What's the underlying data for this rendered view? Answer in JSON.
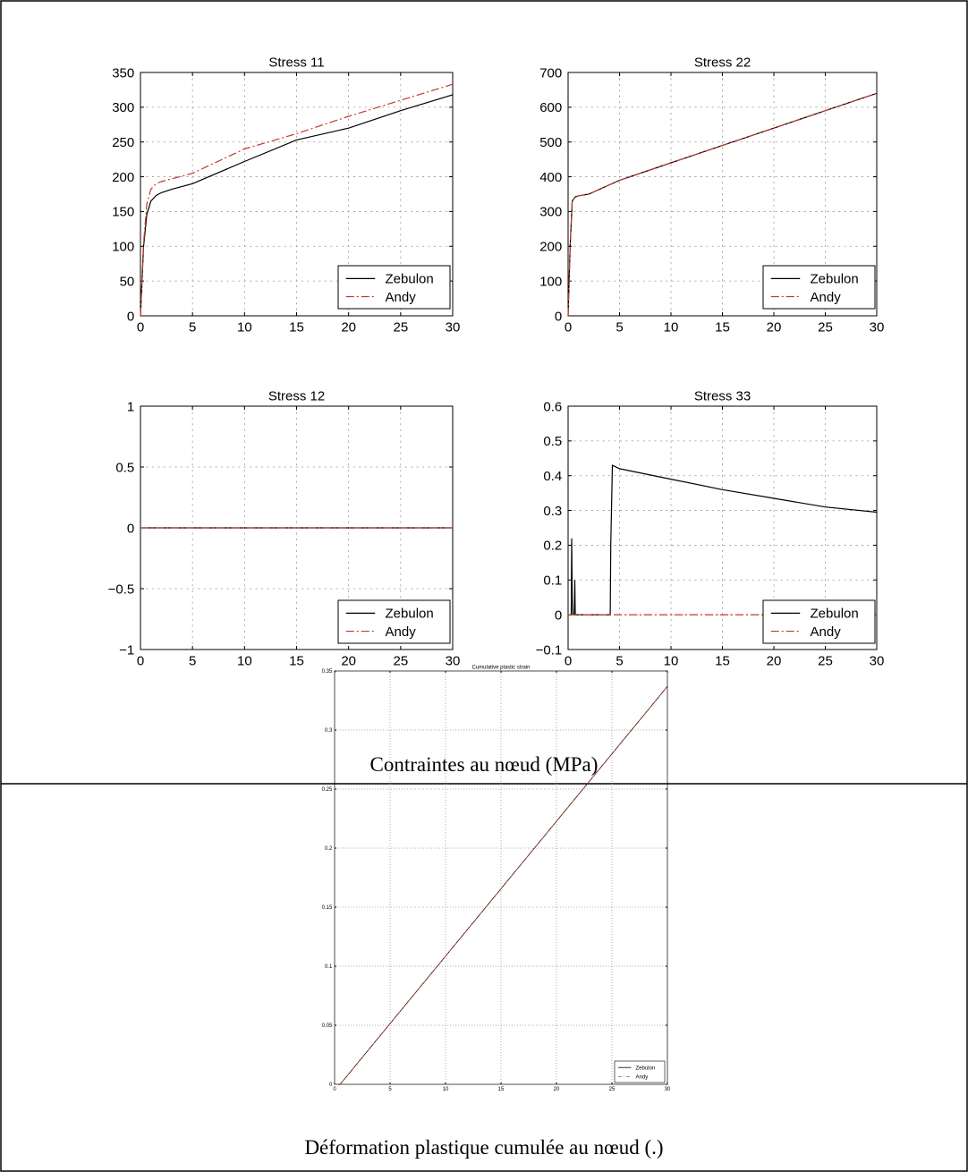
{
  "captions": {
    "stress": "Contraintes au nœud (MPa)",
    "strain": "Déformation plastique cumulée au nœud (.)"
  },
  "colors": {
    "zebulon": "#000000",
    "andy": "#c0392b",
    "grid": "#9a9a9a"
  },
  "chart_data": [
    {
      "type": "line",
      "title": "Stress 11",
      "xlim": [
        0,
        30
      ],
      "ylim": [
        0,
        350
      ],
      "xticks": [
        "0",
        "5",
        "10",
        "15",
        "20",
        "25",
        "30"
      ],
      "yticks": [
        "0",
        "50",
        "100",
        "150",
        "200",
        "250",
        "300",
        "350"
      ],
      "grid": true,
      "legend_position": "bottom-right",
      "series": [
        {
          "name": "Zebulon",
          "style": "solid",
          "x": [
            0,
            0.3,
            0.6,
            1.0,
            1.5,
            2,
            3,
            5,
            10,
            15,
            20,
            25,
            30
          ],
          "y": [
            0,
            100,
            145,
            165,
            173,
            177,
            182,
            190,
            222,
            253,
            270,
            295,
            318
          ]
        },
        {
          "name": "Andy",
          "style": "dashdot",
          "x": [
            0,
            0.3,
            0.6,
            1.0,
            1.5,
            2,
            3,
            5,
            10,
            15,
            20,
            25,
            30
          ],
          "y": [
            0,
            105,
            160,
            182,
            190,
            193,
            197,
            205,
            240,
            262,
            287,
            310,
            333
          ]
        }
      ]
    },
    {
      "type": "line",
      "title": "Stress 22",
      "xlim": [
        0,
        30
      ],
      "ylim": [
        0,
        700
      ],
      "xticks": [
        "0",
        "5",
        "10",
        "15",
        "20",
        "25",
        "30"
      ],
      "yticks": [
        "0",
        "100",
        "200",
        "300",
        "400",
        "500",
        "600",
        "700"
      ],
      "grid": true,
      "legend_position": "bottom-right",
      "series": [
        {
          "name": "Zebulon",
          "style": "solid",
          "x": [
            0,
            0.2,
            0.4,
            0.7,
            1,
            2,
            5,
            10,
            15,
            20,
            25,
            30
          ],
          "y": [
            0,
            200,
            330,
            342,
            345,
            350,
            390,
            440,
            490,
            540,
            590,
            640
          ]
        },
        {
          "name": "Andy",
          "style": "dashdot",
          "x": [
            0,
            0.2,
            0.4,
            0.7,
            1,
            2,
            5,
            10,
            15,
            20,
            25,
            30
          ],
          "y": [
            0,
            200,
            330,
            342,
            345,
            350,
            390,
            440,
            490,
            540,
            590,
            640
          ]
        }
      ]
    },
    {
      "type": "line",
      "title": "Stress 12",
      "xlim": [
        0,
        30
      ],
      "ylim": [
        -1,
        1
      ],
      "xticks": [
        "0",
        "5",
        "10",
        "15",
        "20",
        "25",
        "30"
      ],
      "yticks": [
        "−1",
        "−0.5",
        "0",
        "0.5",
        "1"
      ],
      "grid": true,
      "legend_position": "bottom-right",
      "series": [
        {
          "name": "Zebulon",
          "style": "solid",
          "x": [
            0,
            30
          ],
          "y": [
            0,
            0
          ]
        },
        {
          "name": "Andy",
          "style": "dashdot",
          "x": [
            0,
            30
          ],
          "y": [
            0,
            0
          ]
        }
      ]
    },
    {
      "type": "line",
      "title": "Stress 33",
      "xlim": [
        0,
        30
      ],
      "ylim": [
        -0.1,
        0.6
      ],
      "xticks": [
        "0",
        "5",
        "10",
        "15",
        "20",
        "25",
        "30"
      ],
      "yticks": [
        "−0.1",
        "0",
        "0.1",
        "0.2",
        "0.3",
        "0.4",
        "0.5",
        "0.6"
      ],
      "grid": true,
      "legend_position": "bottom-right",
      "series": [
        {
          "name": "Zebulon",
          "style": "solid",
          "x": [
            0,
            0.3,
            0.35,
            0.4,
            0.45,
            0.6,
            0.65,
            0.7,
            4.1,
            4.15,
            4.3,
            5,
            10,
            15,
            20,
            25,
            30
          ],
          "y": [
            0,
            0,
            0.22,
            0.05,
            0,
            0,
            0.1,
            0,
            0,
            0.2,
            0.43,
            0.42,
            0.39,
            0.36,
            0.335,
            0.31,
            0.295
          ]
        },
        {
          "name": "Andy",
          "style": "dashdot",
          "x": [
            0,
            30
          ],
          "y": [
            0,
            0
          ]
        }
      ]
    },
    {
      "type": "line",
      "title": "Cumulative plastic strain",
      "xlim": [
        0,
        30
      ],
      "ylim": [
        0,
        0.35
      ],
      "xticks": [
        "0",
        "5",
        "10",
        "15",
        "20",
        "25",
        "30"
      ],
      "yticks": [
        "0",
        "0.05",
        "0.1",
        "0.15",
        "0.2",
        "0.25",
        "0.3",
        "0.35"
      ],
      "grid": true,
      "legend_position": "bottom-right",
      "series": [
        {
          "name": "Zebulon",
          "style": "solid",
          "x": [
            0,
            0.5,
            30
          ],
          "y": [
            0,
            0,
            0.337
          ]
        },
        {
          "name": "Andy",
          "style": "dashdot",
          "x": [
            0,
            0.5,
            30
          ],
          "y": [
            0,
            0,
            0.337
          ]
        }
      ]
    }
  ]
}
